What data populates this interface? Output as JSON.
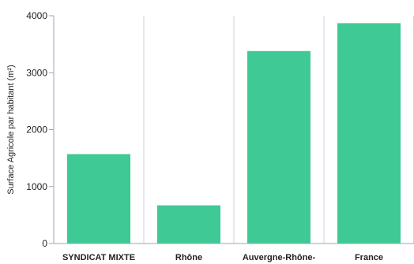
{
  "chart_data": {
    "type": "bar",
    "categories": [
      "SYNDICAT MIXTE",
      "Rhône",
      "Auvergne-Rhône-",
      "France"
    ],
    "values": [
      1570,
      670,
      3380,
      3870
    ],
    "ylabel": "Surface Agricole par habitant (m²)",
    "xlabel": "",
    "ylim": [
      0,
      4000
    ],
    "yticks": [
      0,
      1000,
      2000,
      3000,
      4000
    ],
    "grid": "vertical category separators and horizontal major ticks",
    "legend": "none"
  },
  "colors": {
    "bar": "#3ec995",
    "grid": "#c9d3e0",
    "axis": "#9aa6b8",
    "text": "#222222"
  }
}
